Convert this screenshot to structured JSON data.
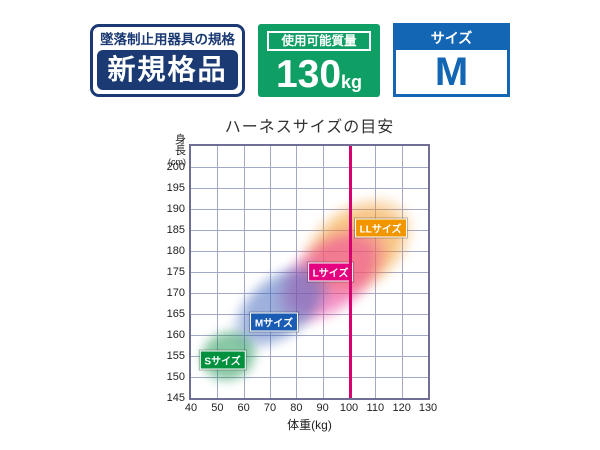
{
  "page": {
    "background": "#ffffff"
  },
  "badges": {
    "standard": {
      "caption": "墜落制止用器具の規格",
      "label": "新規格品",
      "color": "#1b3a73"
    },
    "capacity": {
      "caption": "使用可能質量",
      "value": "130",
      "unit": "kg",
      "color": "#0f9e64"
    },
    "size": {
      "caption": "サイズ",
      "value": "M",
      "color": "#1266b4"
    }
  },
  "chart_data": {
    "type": "area",
    "title": "ハーネスサイズの目安",
    "xlabel": "体重(kg)",
    "ylabel": "身長(cm)",
    "ylabel_lines": [
      "身長",
      "(cm)"
    ],
    "xlim": [
      40,
      130
    ],
    "ylim": [
      145,
      205
    ],
    "xticks": [
      40,
      50,
      60,
      70,
      80,
      90,
      100,
      110,
      120,
      130
    ],
    "yticks": [
      145,
      150,
      155,
      160,
      165,
      170,
      175,
      180,
      185,
      190,
      195,
      200
    ],
    "grid": true,
    "grid_color": "#a3a8c6",
    "border_color": "#6f6f96",
    "reference_line": {
      "axis": "x",
      "value": 100,
      "color": "#d6006e",
      "width": 2.5
    },
    "regions": [
      {
        "size": "S",
        "label": "Sサイズ",
        "label_bg": "#00913e",
        "fill": "rgba(20,145,75,0.5)",
        "weight_range": [
          40,
          66
        ],
        "height_range": [
          145,
          164
        ],
        "center": {
          "weight": 54,
          "height": 155
        },
        "rx_kg": 17,
        "ry_cm": 9.5,
        "angle_deg": -20,
        "label_at": {
          "weight": 52,
          "height": 154
        }
      },
      {
        "size": "M",
        "label": "Mサイズ",
        "label_bg": "#1a5cb4",
        "fill": "rgba(60,100,185,0.5)",
        "weight_range": [
          45,
          95
        ],
        "height_range": [
          150,
          181
        ],
        "center": {
          "weight": 74,
          "height": 167
        },
        "rx_kg": 32,
        "ry_cm": 11.5,
        "angle_deg": -38,
        "label_at": {
          "weight": 71.5,
          "height": 163
        }
      },
      {
        "size": "L",
        "label": "Lサイズ",
        "label_bg": "#e4007f",
        "fill": "rgba(236,60,155,0.55)",
        "weight_range": [
          58,
          118
        ],
        "height_range": [
          154,
          192
        ],
        "center": {
          "weight": 93,
          "height": 174
        },
        "rx_kg": 36,
        "ry_cm": 13,
        "angle_deg": -38,
        "label_at": {
          "weight": 93,
          "height": 175
        }
      },
      {
        "size": "LL",
        "label": "LLサイズ",
        "label_bg": "#f29600",
        "fill": "rgba(242,150,35,0.55)",
        "weight_range": [
          70,
          130
        ],
        "height_range": [
          159,
          202
        ],
        "center": {
          "weight": 103,
          "height": 181
        },
        "rx_kg": 35,
        "ry_cm": 15,
        "angle_deg": -36,
        "label_at": {
          "weight": 112,
          "height": 185.5
        }
      }
    ]
  }
}
